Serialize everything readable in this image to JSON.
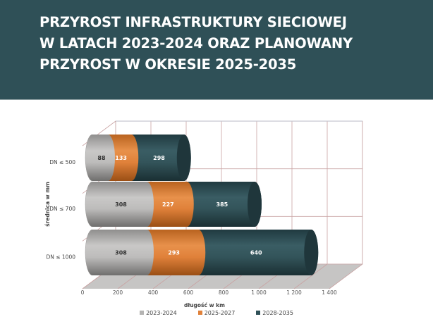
{
  "header": {
    "title_lines": [
      "PRZYROST INFRASTRUKTURY SIECIOWEJ",
      "W LATACH 2023-2024 ORAZ PLANOWANY",
      "PRZYROST W OKRESIE 2025-2035"
    ],
    "background": "#2f5057"
  },
  "chart_data": {
    "type": "bar",
    "orientation": "horizontal",
    "stacked": true,
    "style": "3d-cylinder",
    "title": "PRZYROST INFRASTRUKTURY SIECIOWEJ W LATACH 2023-2024 ORAZ PLANOWANY PRZYROST W OKRESIE 2025-2035",
    "xlabel": "długość w km",
    "ylabel": "średnica w mm",
    "categories": [
      "DN ≤ 500",
      "DN ≤ 700",
      "DN ≤ 1000"
    ],
    "series": [
      {
        "name": "2023-2024",
        "values": [
          88,
          308,
          308
        ],
        "color": "#b5b4b3",
        "label_color": "#333333"
      },
      {
        "name": "2025-2027",
        "values": [
          133,
          227,
          293
        ],
        "color": "#e0813a",
        "label_color": "#ffffff"
      },
      {
        "name": "2028-2035",
        "values": [
          298,
          385,
          640
        ],
        "color": "#2f5057",
        "label_color": "#ffffff"
      }
    ],
    "x_ticks": [
      "0",
      "200",
      "400",
      "600",
      "800",
      "1 000",
      "1 200",
      "1 400"
    ],
    "xlim": [
      0,
      1400
    ],
    "grid": true,
    "legend_position": "bottom"
  }
}
